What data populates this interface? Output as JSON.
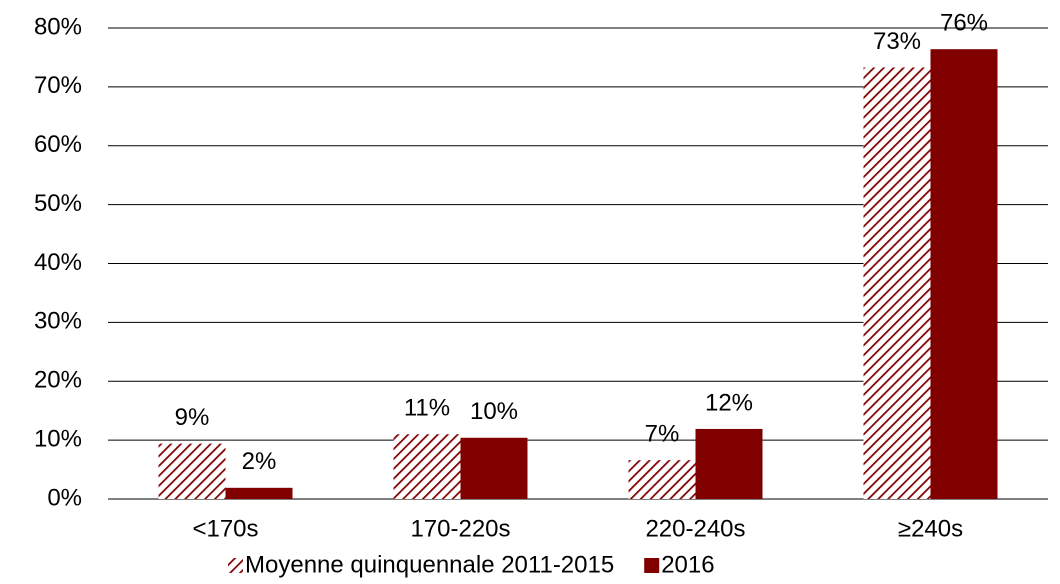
{
  "chart_data": {
    "type": "bar",
    "categories": [
      "<170s",
      "170-220s",
      "220-240s",
      "≥240s"
    ],
    "series": [
      {
        "name": "Moyenne quinquennale 2011-2015",
        "color": "#800000",
        "hatch": true,
        "values": [
          9.4,
          11.0,
          6.6,
          73.3
        ],
        "value_labels": [
          "9%",
          "11%",
          "7%",
          "73%"
        ]
      },
      {
        "name": "2016",
        "color": "#800000",
        "hatch": false,
        "values": [
          1.9,
          10.4,
          11.9,
          76.4
        ],
        "value_labels": [
          "2%",
          "10%",
          "12%",
          "76%"
        ]
      }
    ],
    "ylim": [
      0,
      80
    ],
    "yticks": [
      {
        "value": 0,
        "label": "0%"
      },
      {
        "value": 10,
        "label": "10%"
      },
      {
        "value": 20,
        "label": "20%"
      },
      {
        "value": 30,
        "label": "30%"
      },
      {
        "value": 40,
        "label": "40%"
      },
      {
        "value": 50,
        "label": "50%"
      },
      {
        "value": 60,
        "label": "60%"
      },
      {
        "value": 70,
        "label": "70%"
      },
      {
        "value": 80,
        "label": "80%"
      }
    ],
    "grid": true,
    "legend": "bottom"
  }
}
